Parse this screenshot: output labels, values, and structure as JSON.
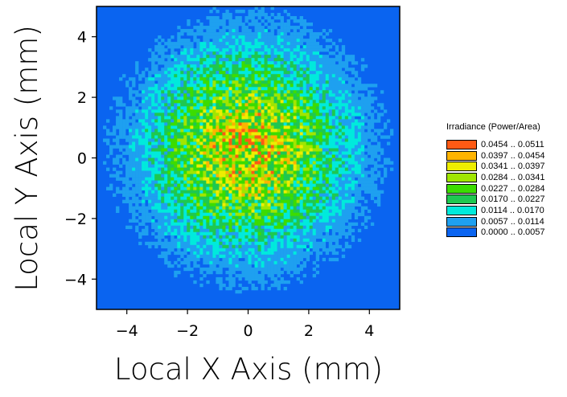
{
  "chart_data": {
    "type": "heatmap",
    "xlabel": "Local X Axis (mm)",
    "ylabel": "Local Y Axis (mm)",
    "xlim": [
      -5,
      5
    ],
    "ylim": [
      -5,
      5
    ],
    "xticks": [
      -4,
      -2,
      0,
      2,
      4
    ],
    "yticks": [
      -4,
      -2,
      0,
      2,
      4
    ],
    "xtick_labels": [
      "−4",
      "−2",
      "0",
      "2",
      "4"
    ],
    "ytick_labels": [
      "−4",
      "−2",
      "0",
      "2",
      "4"
    ],
    "grid": false,
    "legend": {
      "title": "Irradiance (Power/Area)",
      "placement": "right",
      "bins": [
        {
          "label": "0.0454 .. 0.0511",
          "min": 0.0454,
          "max": 0.0511,
          "color": "#ff5a14"
        },
        {
          "label": "0.0397 .. 0.0454",
          "min": 0.0397,
          "max": 0.0454,
          "color": "#ffb400"
        },
        {
          "label": "0.0341 .. 0.0397",
          "min": 0.0341,
          "max": 0.0397,
          "color": "#eeee00"
        },
        {
          "label": "0.0284 .. 0.0341",
          "min": 0.0284,
          "max": 0.0341,
          "color": "#a0e600"
        },
        {
          "label": "0.0227 .. 0.0284",
          "min": 0.0227,
          "max": 0.0284,
          "color": "#3cdc00"
        },
        {
          "label": "0.0170 .. 0.0227",
          "min": 0.017,
          "max": 0.0227,
          "color": "#1ec850"
        },
        {
          "label": "0.0114 .. 0.0170",
          "min": 0.0114,
          "max": 0.017,
          "color": "#00eadc"
        },
        {
          "label": "0.0057 .. 0.0114",
          "min": 0.0057,
          "max": 0.0114,
          "color": "#1ea0f0"
        },
        {
          "label": "0.0000 .. 0.0057",
          "min": 0.0,
          "max": 0.0057,
          "color": "#0a64f0"
        }
      ]
    },
    "distribution": {
      "center_x": 0.0,
      "center_y": 0.3,
      "peak_irradiance": 0.036,
      "sigma_mm": 2.3,
      "noise": 0.45
    }
  }
}
